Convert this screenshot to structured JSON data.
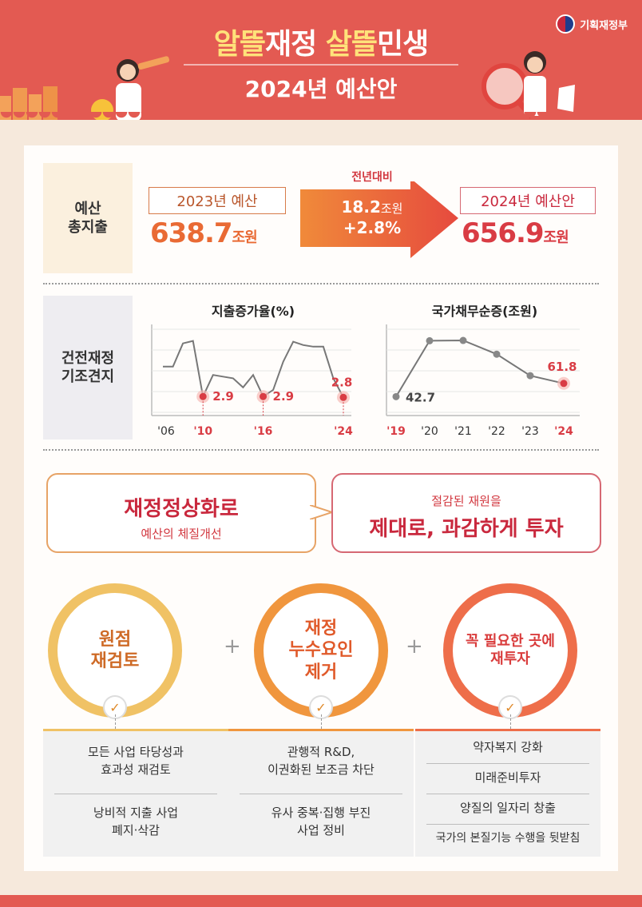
{
  "header": {
    "title_yellow_1": "알뜰",
    "title_white_1": "재정 ",
    "title_yellow_2": "살뜰",
    "title_white_2": "민생",
    "subtitle": "2024년 예산안",
    "ministry": "기획재정부"
  },
  "budget": {
    "label": "예산\n총지출",
    "prev_label": "2023년 예산",
    "prev_value": "638.7",
    "prev_unit": "조원",
    "diff_label": "전년대비",
    "diff_value": "18.2",
    "diff_unit": "조원",
    "diff_pct": "+2.8%",
    "new_label": "2024년 예산안",
    "new_value": "656.9",
    "new_unit": "조원"
  },
  "fiscal": {
    "label": "건전재정\n기조견지"
  },
  "chart_data": [
    {
      "type": "line",
      "title": "지출증가율(%)",
      "x": [
        "'06",
        "'07",
        "'08",
        "'09",
        "'10",
        "'11",
        "'12",
        "'13",
        "'14",
        "'15",
        "'16",
        "'17",
        "'18",
        "'19",
        "'20",
        "'21",
        "'22",
        "'23",
        "'24"
      ],
      "xticks": [
        "'06",
        "'10",
        "'16",
        "'24"
      ],
      "values": [
        6.5,
        6.5,
        9.3,
        9.6,
        2.9,
        5.5,
        5.3,
        5.1,
        4.0,
        5.5,
        2.9,
        3.7,
        7.1,
        9.5,
        9.1,
        8.9,
        8.9,
        5.1,
        2.8
      ],
      "annotated": [
        {
          "x": "'10",
          "label": "2.9"
        },
        {
          "x": "'16",
          "label": "2.9"
        },
        {
          "x": "'24",
          "label": "2.8"
        }
      ],
      "ylim": [
        1,
        11
      ],
      "grid": true
    },
    {
      "type": "line",
      "title": "국가채무순증(조원)",
      "x": [
        "'19",
        "'20",
        "'21",
        "'22",
        "'23",
        "'24"
      ],
      "values": [
        42.7,
        123.4,
        123.8,
        104.0,
        73.0,
        61.8
      ],
      "annotated": [
        {
          "x": "'19",
          "label": "42.7"
        },
        {
          "x": "'24",
          "label": "61.8"
        }
      ],
      "ylim": [
        20,
        140
      ],
      "grid": true
    }
  ],
  "bubbles": {
    "left_title": "재정정상화로",
    "left_sub": "예산의 체질개선",
    "right_sub": "절감된 재원을",
    "right_title": "제대로, 과감하게 투자"
  },
  "pillars": [
    {
      "title": "원점\n재검토",
      "items": [
        "모든 사업 타당성과\n효과성 재검토",
        "낭비적 지출 사업\n폐지·삭감"
      ]
    },
    {
      "title": "재정\n누수요인\n제거",
      "items": [
        "관행적 R&D,\n이권화된 보조금 차단",
        "유사 중복·집행 부진\n사업 정비"
      ]
    },
    {
      "title": "꼭 필요한 곳에\n재투자",
      "items": [
        "약자복지 강화",
        "미래준비투자",
        "양질의 일자리 창출",
        "국가의 본질기능 수행을 뒷받침"
      ]
    }
  ],
  "plus": "+",
  "checkmark": "✓",
  "colors": {
    "header": "#e35a52",
    "accent_red": "#d93c44",
    "accent_orange": "#e96a34",
    "circle1": "#f0c265",
    "circle2": "#f0963e",
    "circle3": "#ee6e4a"
  }
}
